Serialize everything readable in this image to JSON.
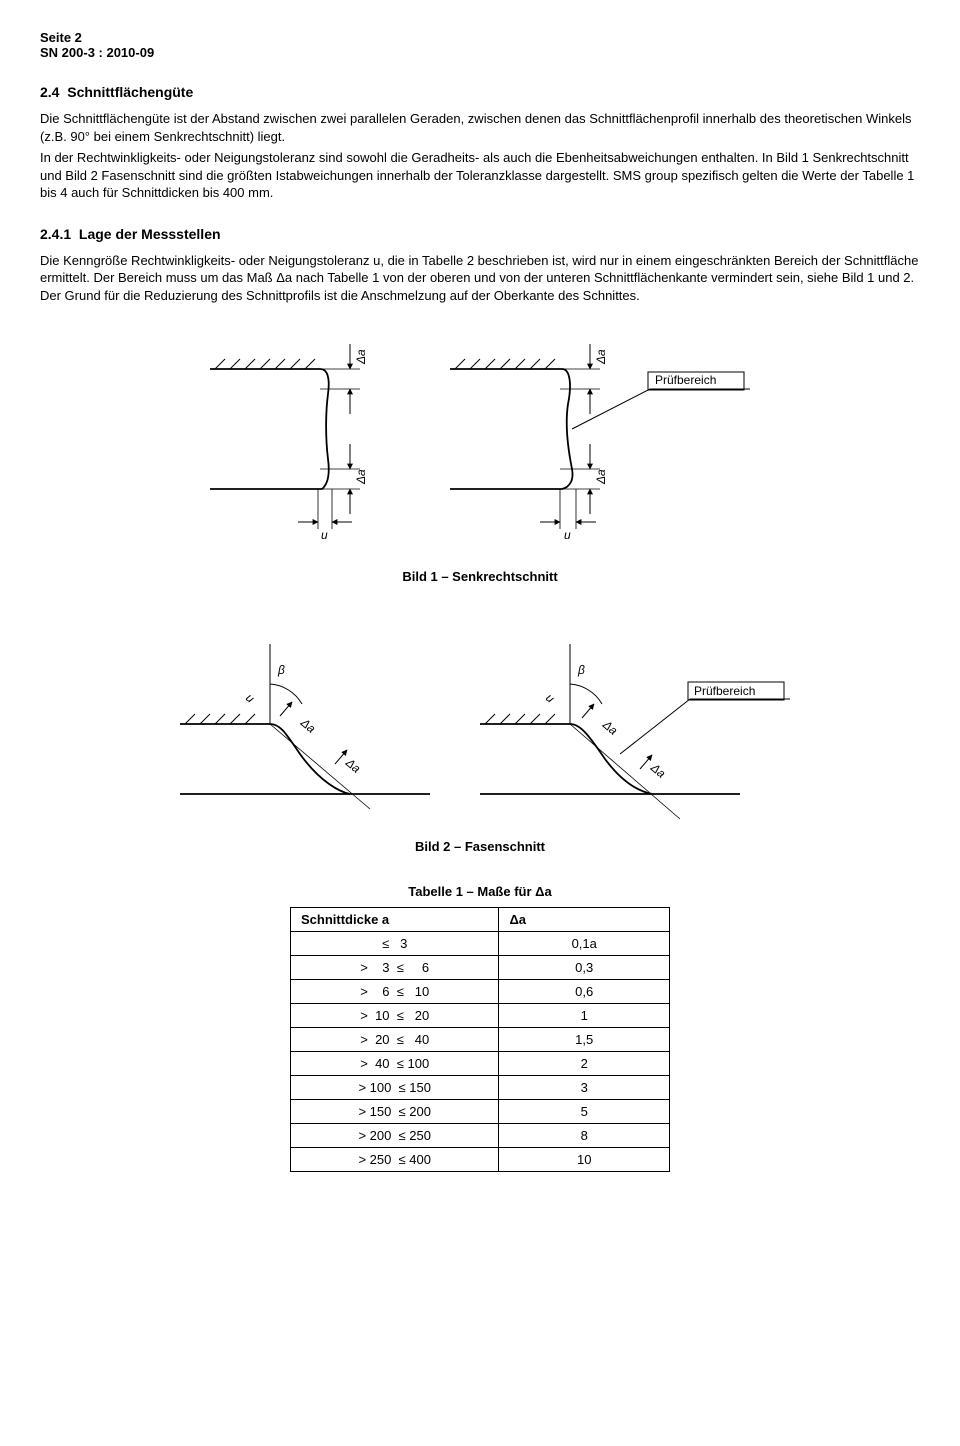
{
  "header": {
    "page": "Seite 2",
    "doc": "SN 200-3 : 2010-09"
  },
  "section24": {
    "num": "2.4",
    "title": "Schnittflächengüte",
    "p1": "Die Schnittflächengüte ist der Abstand zwischen zwei parallelen Geraden, zwischen denen das Schnittflächenprofil innerhalb des theoretischen Winkels (z.B. 90° bei einem Senkrechtschnitt) liegt.",
    "p2": "In der Rechtwinkligkeits- oder Neigungstoleranz sind sowohl die Geradheits- als auch die Ebenheitsabweichungen  enthalten. In Bild 1 Senkrechtschnitt und Bild 2 Fasenschnitt sind die größten Istabweichungen innerhalb der Toleranzklasse dargestellt. SMS group spezifisch gelten die Werte der Tabelle 1 bis 4 auch für Schnittdicken bis 400 mm."
  },
  "section241": {
    "num": "2.4.1",
    "title": "Lage der Messstellen",
    "p1": "Die Kenngröße Rechtwinkligkeits- oder Neigungstoleranz u, die in Tabelle 2 beschrieben ist, wird nur in einem eingeschränkten Bereich der Schnittfläche ermittelt. Der Bereich muss um das Maß Δa nach Tabelle 1 von der oberen und von der unteren Schnittflächenkante vermindert sein, siehe Bild 1 und 2. Der Grund für die Reduzierung des Schnittprofils ist die Anschmelzung auf der Oberkante des Schnittes."
  },
  "fig1": {
    "caption": "Bild 1 – Senkrechtschnitt",
    "label_da": "Δa",
    "label_u": "u",
    "label_pruef": "Prüfbereich"
  },
  "fig2": {
    "caption": "Bild 2 – Fasenschnitt",
    "label_da": "Δa",
    "label_u": "u",
    "label_beta": "β",
    "label_pruef": "Prüfbereich"
  },
  "table1": {
    "caption": "Tabelle 1 – Maße für Δa",
    "head_a": "Schnittdicke a",
    "head_d": "Δa",
    "rows": [
      {
        "a": "≤   3",
        "d": "0,1a"
      },
      {
        "a": ">    3  ≤     6",
        "d": "0,3"
      },
      {
        "a": ">    6  ≤   10",
        "d": "0,6"
      },
      {
        "a": ">  10  ≤   20",
        "d": "1"
      },
      {
        "a": ">  20  ≤   40",
        "d": "1,5"
      },
      {
        "a": ">  40  ≤ 100",
        "d": "2"
      },
      {
        "a": "> 100  ≤ 150",
        "d": "3"
      },
      {
        "a": "> 150  ≤ 200",
        "d": "5"
      },
      {
        "a": "> 200  ≤ 250",
        "d": "8"
      },
      {
        "a": "> 250  ≤ 400",
        "d": "10"
      }
    ]
  },
  "style": {
    "stroke": "#000000",
    "hatch": "#000000",
    "bg": "#ffffff"
  }
}
